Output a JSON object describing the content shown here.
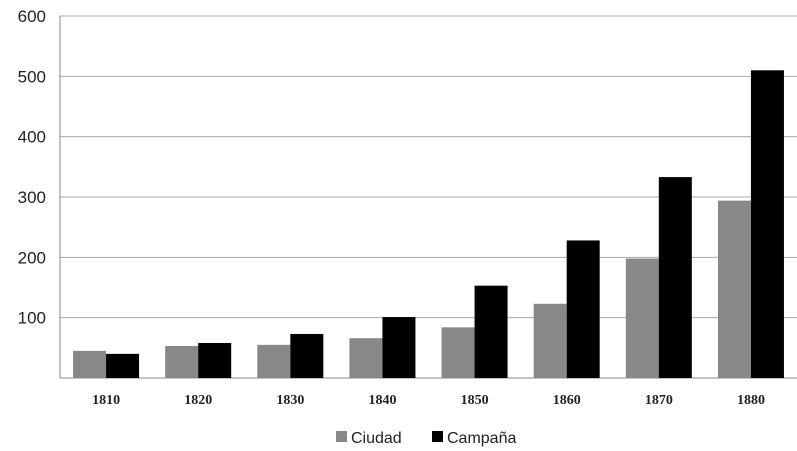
{
  "chart_data": {
    "type": "bar",
    "categories": [
      "1810",
      "1820",
      "1830",
      "1840",
      "1850",
      "1860",
      "1870",
      "1880"
    ],
    "series": [
      {
        "name": "Ciudad",
        "values": [
          45,
          53,
          55,
          66,
          84,
          123,
          198,
          294
        ]
      },
      {
        "name": "Campaña",
        "values": [
          40,
          58,
          73,
          101,
          153,
          228,
          333,
          510
        ]
      }
    ],
    "ylim": [
      0,
      600
    ],
    "yticks": [
      "100",
      "200",
      "300",
      "400",
      "500",
      "600"
    ],
    "grid": "horizontal",
    "legend_position": "bottom",
    "colors": {
      "Ciudad": "#888888",
      "Campaña": "#000000",
      "grid": "#a8a8a8",
      "axis": "#8a8a8a"
    }
  }
}
